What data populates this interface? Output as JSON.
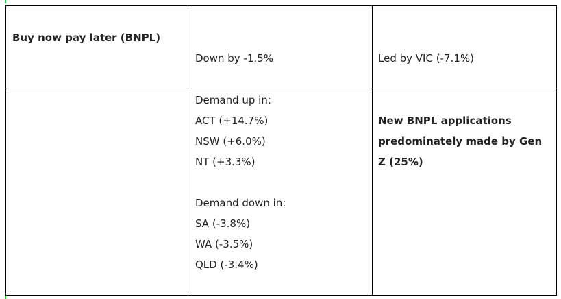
{
  "table": {
    "rows": [
      {
        "cells": [
          "Buy now pay later (BNPL)",
          "Down by -1.5%",
          "Led by VIC (-7.1%)"
        ]
      },
      {
        "demand": [
          [
            "Demand up in:",
            "ACT (+14.7%)",
            "NSW (+6.0%)",
            "NT (+3.3%)"
          ],
          [
            "Demand down in:",
            "SA (-3.8%)",
            "WA (-3.5%)",
            "QLD (-3.4%)"
          ]
        ],
        "note": "New BNPL applications predominately made by Gen Z (25%)"
      }
    ]
  }
}
